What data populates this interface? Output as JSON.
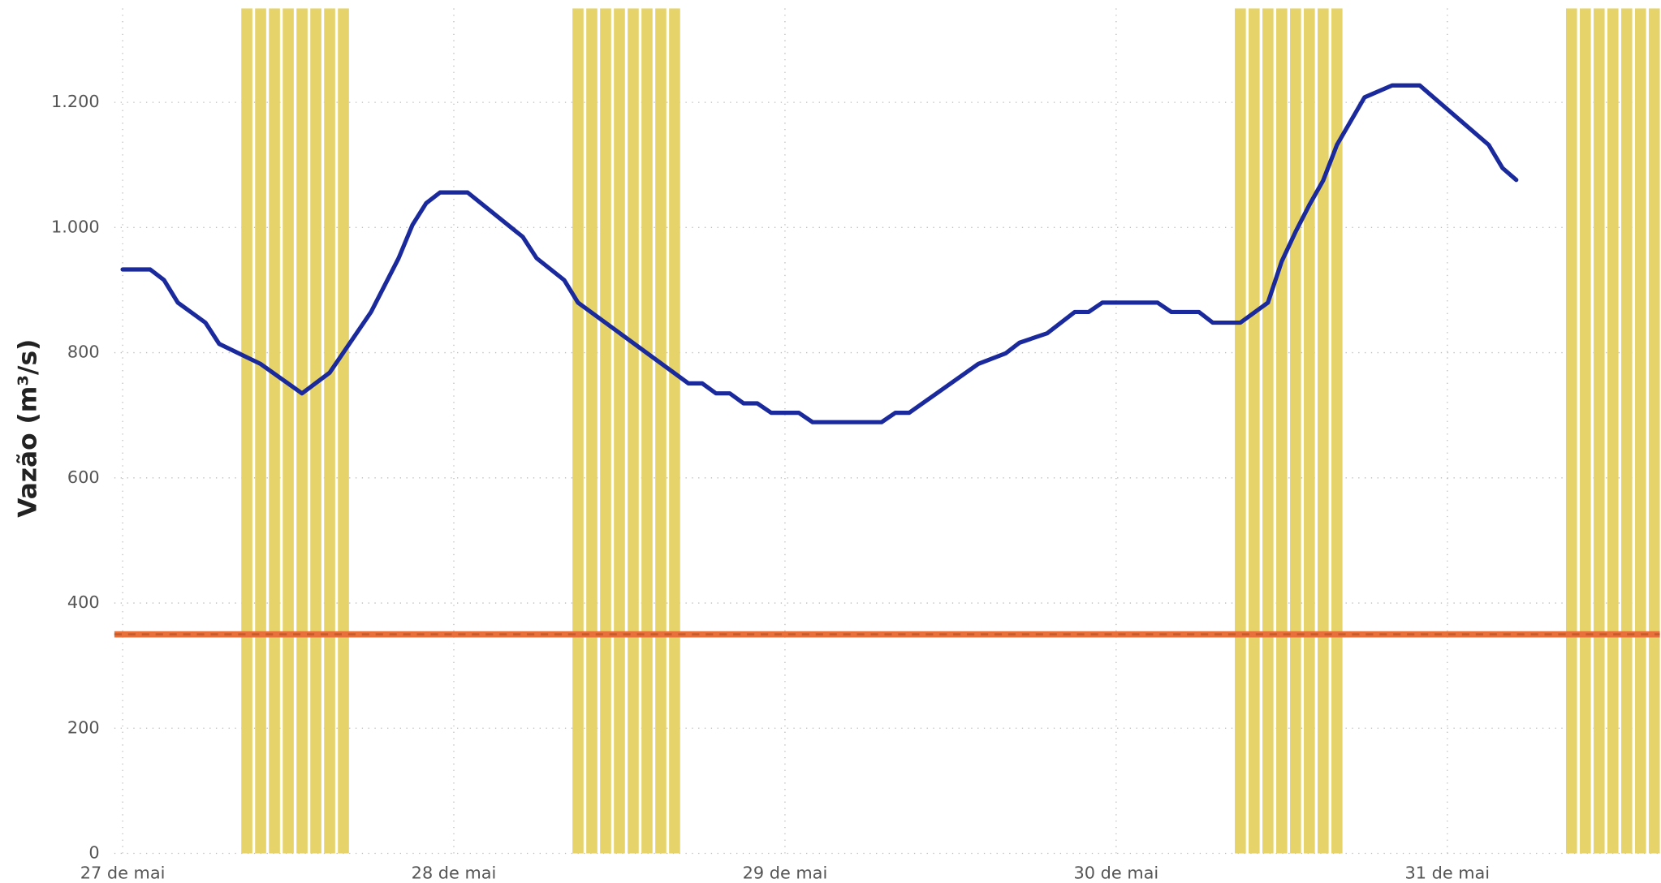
{
  "chart_data": {
    "type": "combo",
    "y_label": "Vazão (m³/s)",
    "xlim": [
      -0.6,
      111.4
    ],
    "xticks": [
      {
        "value": 0,
        "label": "27 de mai"
      },
      {
        "value": 24,
        "label": "28 de mai"
      },
      {
        "value": 48,
        "label": "29 de mai"
      },
      {
        "value": 72,
        "label": "30 de mai"
      },
      {
        "value": 96,
        "label": "31 de mai"
      }
    ],
    "ylim": [
      0,
      1350
    ],
    "yticks": [
      0,
      200,
      400,
      600,
      800,
      {
        "value": 1000,
        "label": "1.000"
      },
      {
        "value": 1200,
        "label": "1.200"
      }
    ],
    "grid": true,
    "reference_line": {
      "value": 350,
      "color": "#e8703a"
    },
    "series": [
      {
        "type": "bar",
        "color": "#e6d36a",
        "x": [
          9,
          10,
          11,
          12,
          13,
          14,
          15,
          16,
          33,
          34,
          35,
          36,
          37,
          38,
          39,
          40,
          81,
          82,
          83,
          84,
          85,
          86,
          87,
          88,
          105,
          106,
          107,
          108,
          109,
          110,
          111
        ],
        "values": [
          1350,
          1350,
          1350,
          1350,
          1350,
          1350,
          1350,
          1350,
          1350,
          1350,
          1350,
          1350,
          1350,
          1350,
          1350,
          1350,
          1350,
          1350,
          1350,
          1350,
          1350,
          1350,
          1350,
          1350,
          1350,
          1350,
          1350,
          1350,
          1350,
          1350,
          1350
        ]
      },
      {
        "type": "line",
        "color": "#1a2a9c",
        "x": [
          0,
          2,
          3,
          4,
          6,
          7,
          10,
          13,
          15,
          18,
          20,
          21,
          22,
          23,
          25,
          29,
          30,
          32,
          33,
          41,
          42,
          43,
          44,
          45,
          46,
          47,
          49,
          50,
          55,
          56,
          57,
          62,
          64,
          65,
          67,
          69,
          70,
          71,
          75,
          76,
          78,
          79,
          81,
          83,
          84,
          85,
          86,
          87,
          88,
          90,
          92,
          94,
          97,
          99,
          100,
          101
        ],
        "values": [
          933,
          933,
          916,
          880,
          848,
          814,
          782,
          735,
          768,
          865,
          951,
          1004,
          1039,
          1056,
          1056,
          985,
          951,
          916,
          880,
          751,
          751,
          735,
          735,
          719,
          719,
          704,
          704,
          689,
          689,
          704,
          704,
          782,
          799,
          816,
          831,
          865,
          865,
          880,
          880,
          865,
          865,
          848,
          848,
          880,
          946,
          993,
          1036,
          1075,
          1132,
          1208,
          1227,
          1227,
          1170,
          1132,
          1095,
          1076
        ]
      }
    ]
  }
}
